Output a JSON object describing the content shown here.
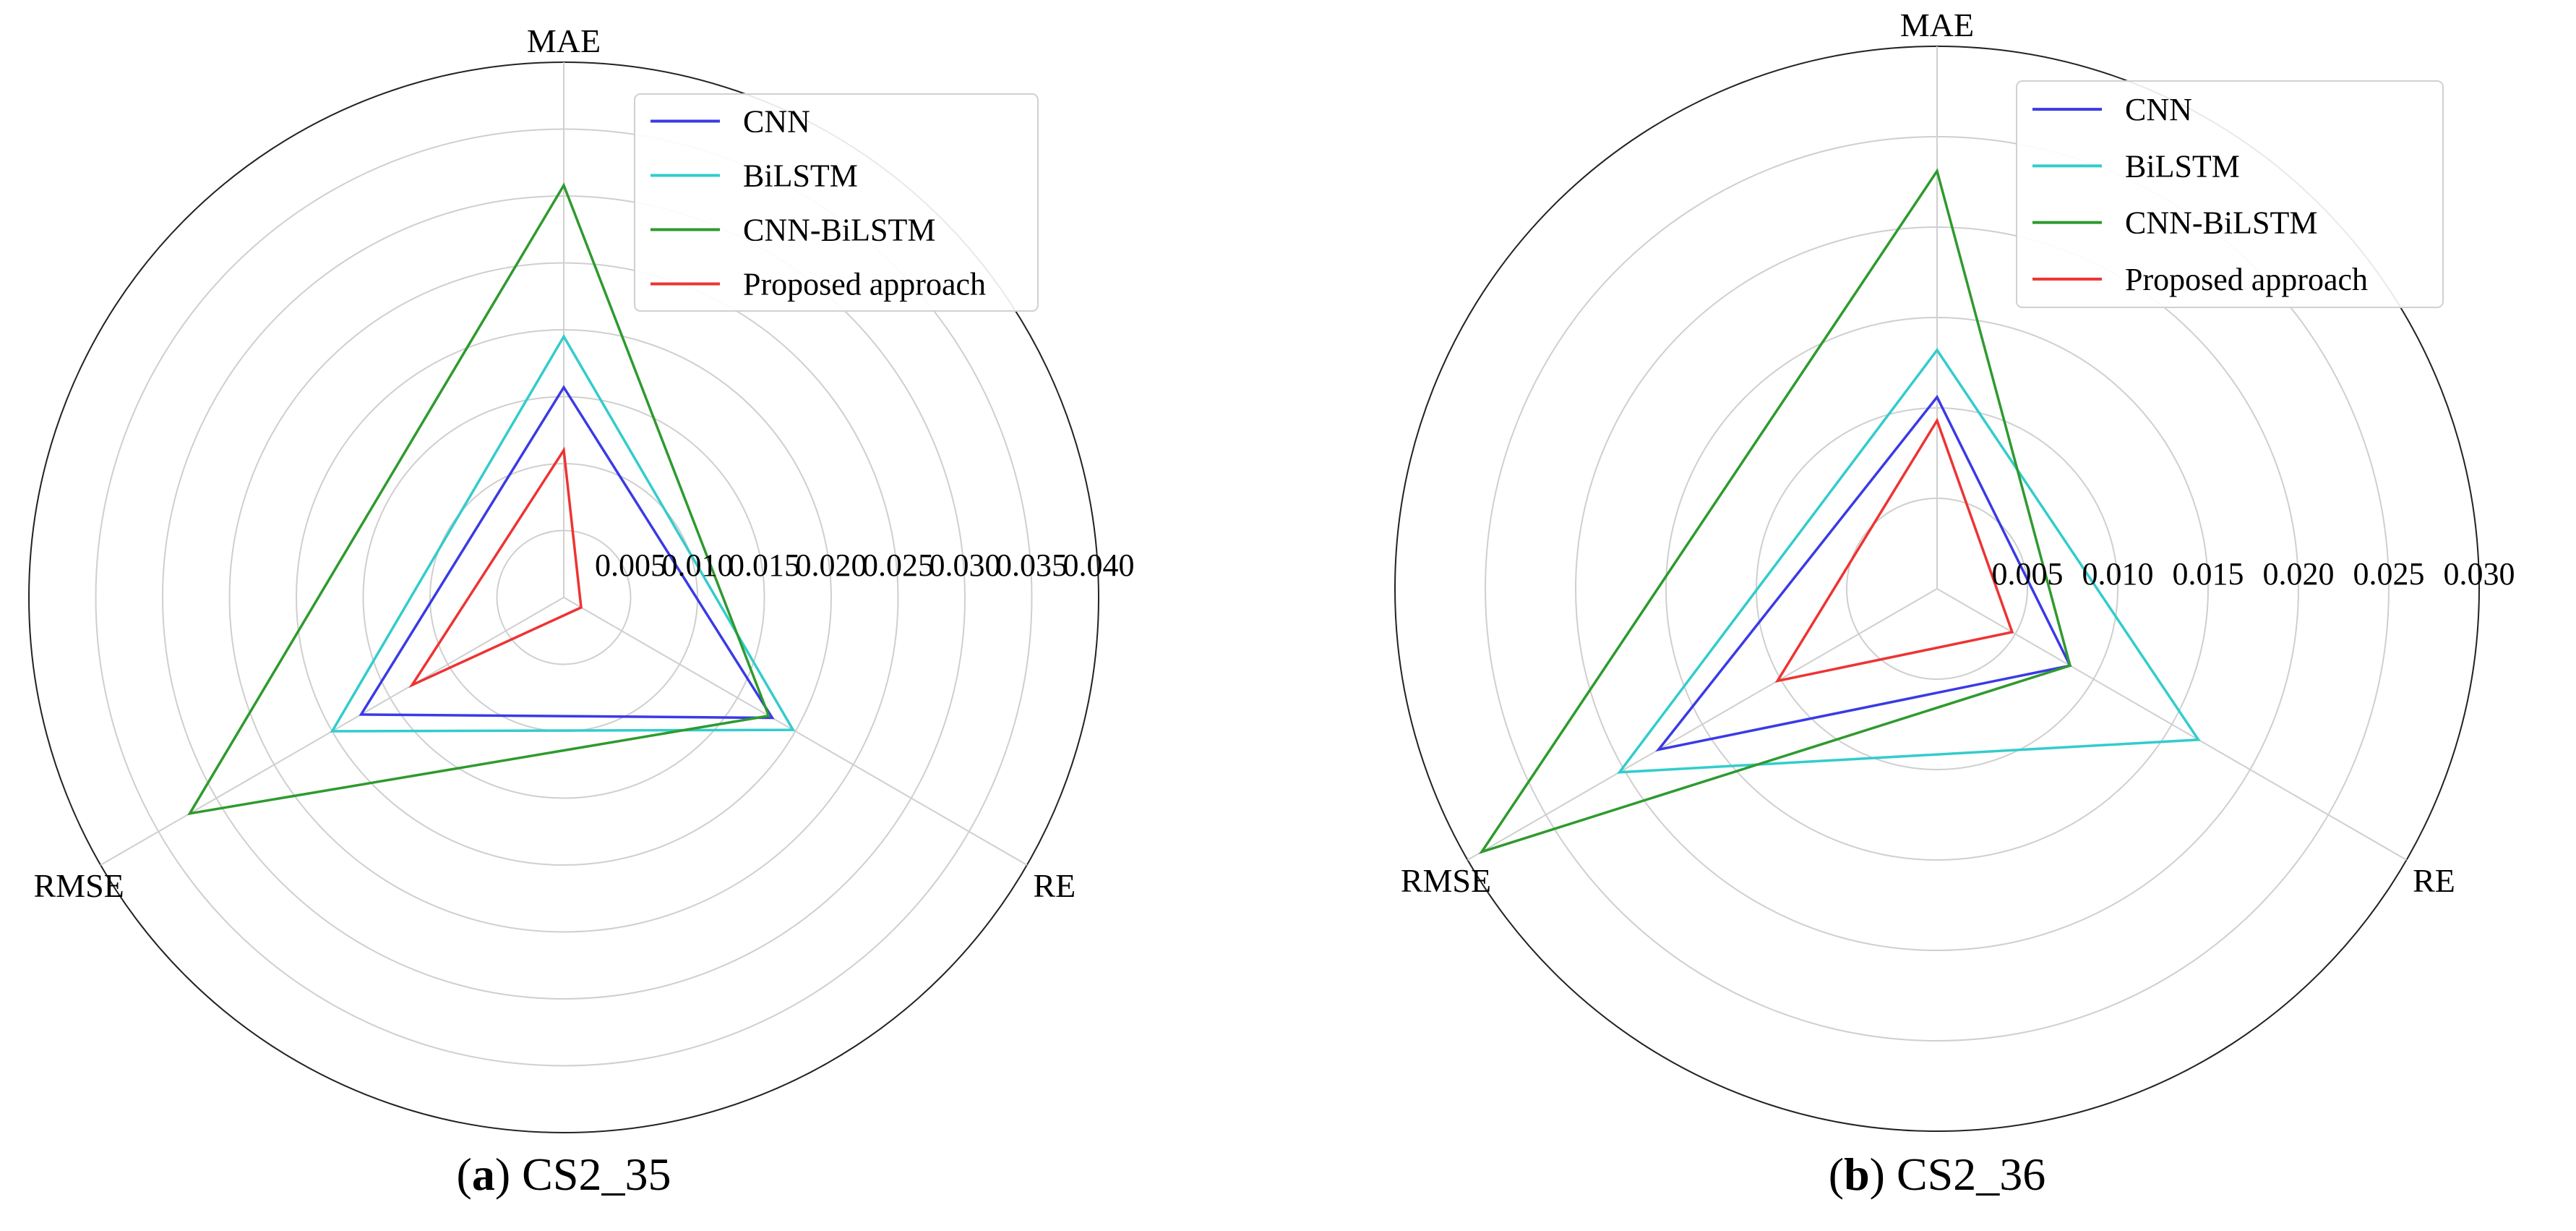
{
  "chart_data": [
    {
      "type": "radar",
      "axes": [
        "MAE",
        "RE",
        "RMSE"
      ],
      "rmax": 0.04,
      "radial_ticks": [
        0.005,
        0.01,
        0.015,
        0.02,
        0.025,
        0.03,
        0.035,
        0.04
      ],
      "radial_tick_labels": [
        "0.005",
        "0.010",
        "0.015",
        "0.020",
        "0.025",
        "0.030",
        "0.035",
        "0.040"
      ],
      "grid": true,
      "legend_position": "top-right",
      "series": [
        {
          "name": "CNN",
          "color": "#3a3ae6",
          "values": [
            0.0157,
            0.018,
            0.0175
          ]
        },
        {
          "name": "BiLSTM",
          "color": "#33cccc",
          "values": [
            0.0195,
            0.0198,
            0.02
          ]
        },
        {
          "name": "CNN-BiLSTM",
          "color": "#2e9a2e",
          "values": [
            0.0308,
            0.0177,
            0.0323
          ]
        },
        {
          "name": "Proposed approach",
          "color": "#ee3333",
          "values": [
            0.011,
            0.0015,
            0.0131
          ]
        }
      ],
      "caption_letter": "a",
      "caption_text": "CS2_35"
    },
    {
      "type": "radar",
      "axes": [
        "MAE",
        "RE",
        "RMSE"
      ],
      "rmax": 0.03,
      "radial_ticks": [
        0.005,
        0.01,
        0.015,
        0.02,
        0.025,
        0.03
      ],
      "radial_tick_labels": [
        "0.005",
        "0.010",
        "0.015",
        "0.020",
        "0.025",
        "0.030"
      ],
      "grid": true,
      "legend_position": "top-right",
      "series": [
        {
          "name": "CNN",
          "color": "#3a3ae6",
          "values": [
            0.0106,
            0.0085,
            0.0178
          ]
        },
        {
          "name": "BiLSTM",
          "color": "#33cccc",
          "values": [
            0.0132,
            0.0167,
            0.0203
          ]
        },
        {
          "name": "CNN-BiLSTM",
          "color": "#2e9a2e",
          "values": [
            0.0231,
            0.0085,
            0.0291
          ]
        },
        {
          "name": "Proposed approach",
          "color": "#ee3333",
          "values": [
            0.0093,
            0.0048,
            0.0102
          ]
        }
      ],
      "caption_letter": "b",
      "caption_text": "CS2_36"
    }
  ]
}
